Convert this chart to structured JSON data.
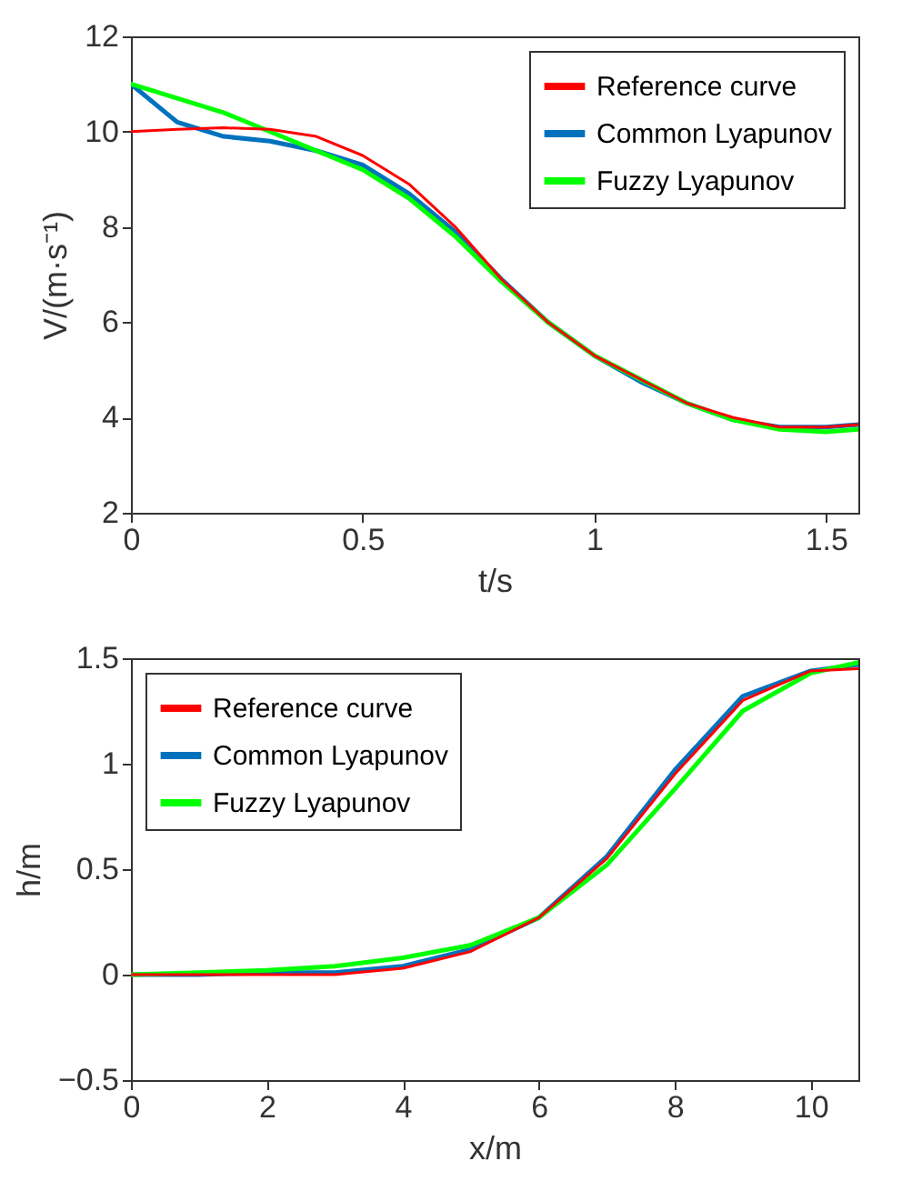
{
  "chart_data": [
    {
      "type": "line",
      "xlabel": "t/s",
      "ylabel": "V/(m·s⁻¹)",
      "x": [
        0,
        0.1,
        0.2,
        0.3,
        0.4,
        0.5,
        0.6,
        0.7,
        0.8,
        0.9,
        1.0,
        1.1,
        1.2,
        1.3,
        1.4,
        1.5,
        1.57
      ],
      "series": [
        {
          "name": "Reference curve",
          "color": "#ff0000",
          "values": [
            10,
            10.05,
            10.08,
            10.05,
            9.9,
            9.5,
            8.9,
            8.0,
            6.9,
            6.0,
            5.3,
            4.8,
            4.3,
            4.0,
            3.8,
            3.8,
            3.85
          ]
        },
        {
          "name": "Common Lyapunov",
          "color": "#0072bd",
          "values": [
            11,
            10.2,
            9.9,
            9.8,
            9.6,
            9.3,
            8.7,
            7.9,
            6.9,
            6.0,
            5.3,
            4.75,
            4.3,
            3.95,
            3.8,
            3.8,
            3.85
          ]
        },
        {
          "name": "Fuzzy Lyapunov",
          "color": "#00ff00",
          "values": [
            11,
            10.7,
            10.4,
            10.0,
            9.6,
            9.2,
            8.6,
            7.8,
            6.85,
            6.0,
            5.3,
            4.8,
            4.3,
            3.95,
            3.75,
            3.7,
            3.75
          ]
        }
      ],
      "xlim": [
        0,
        1.57
      ],
      "xticks": [
        0,
        0.5,
        1,
        1.5
      ],
      "ylim": [
        2,
        12
      ],
      "yticks": [
        2,
        4,
        6,
        8,
        10,
        12
      ],
      "legend": "top right",
      "grid": false
    },
    {
      "type": "line",
      "xlabel": "x/m",
      "ylabel": "h/m",
      "x": [
        0,
        1,
        2,
        3,
        4,
        5,
        6,
        7,
        8,
        9,
        10,
        10.7
      ],
      "series": [
        {
          "name": "Reference curve",
          "color": "#ff0000",
          "values": [
            0,
            0,
            0,
            0,
            0.03,
            0.11,
            0.27,
            0.55,
            0.95,
            1.3,
            1.44,
            1.45
          ]
        },
        {
          "name": "Common Lyapunov",
          "color": "#0072bd",
          "values": [
            0,
            0,
            0.01,
            0.01,
            0.04,
            0.12,
            0.27,
            0.56,
            0.97,
            1.32,
            1.44,
            1.47
          ]
        },
        {
          "name": "Fuzzy Lyapunov",
          "color": "#00ff00",
          "values": [
            0,
            0.01,
            0.02,
            0.04,
            0.08,
            0.14,
            0.27,
            0.52,
            0.88,
            1.25,
            1.43,
            1.48
          ]
        }
      ],
      "xlim": [
        0,
        10.7
      ],
      "xticks": [
        0,
        2,
        4,
        6,
        8,
        10
      ],
      "ylim": [
        -0.5,
        1.5
      ],
      "yticks": [
        -0.5,
        0,
        0.5,
        1,
        1.5
      ],
      "legend": "top left",
      "grid": false
    }
  ]
}
